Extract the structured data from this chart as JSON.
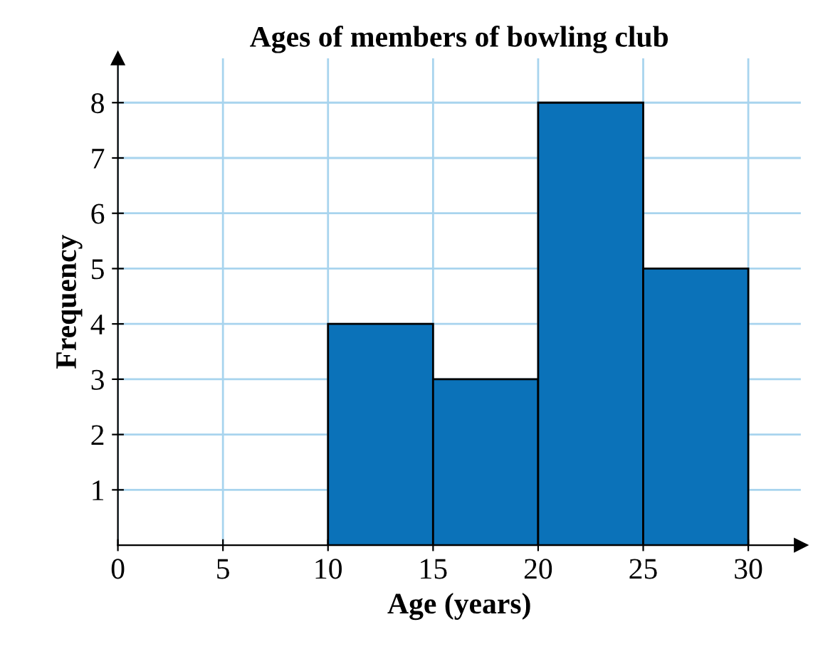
{
  "chart_data": {
    "type": "histogram",
    "title": "Ages of members of bowling club",
    "xlabel": "Age (years)",
    "ylabel": "Frequency",
    "bins": [
      10,
      15,
      20,
      25,
      30
    ],
    "values": [
      4,
      3,
      8,
      5
    ],
    "color": "#0b72b9",
    "xlim": [
      0,
      32.5
    ],
    "ylim": [
      0,
      8.8
    ],
    "xticks": [
      0,
      5,
      10,
      15,
      20,
      25,
      30
    ],
    "yticks": [
      1,
      2,
      3,
      4,
      5,
      6,
      7,
      8
    ],
    "grid": true
  }
}
